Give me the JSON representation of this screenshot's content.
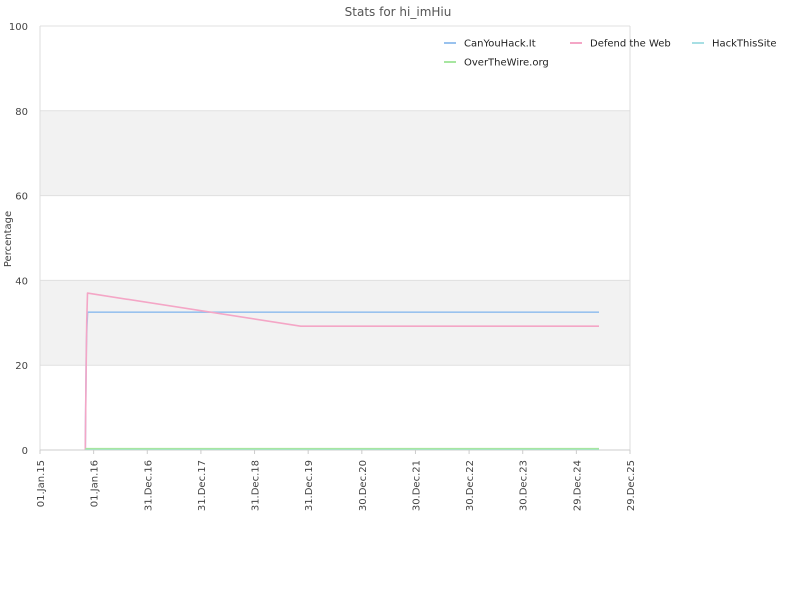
{
  "chart_data": {
    "type": "line",
    "title": "Stats for hi_imHiu",
    "xlabel": "",
    "ylabel": "Percentage",
    "ylim": [
      0,
      100
    ],
    "yticks": [
      0,
      20,
      40,
      60,
      80,
      100
    ],
    "xlim": [
      "2015-01-01",
      "2025-12-29"
    ],
    "xticks": [
      {
        "date": "2015-01-01",
        "label": "01.Jan.15"
      },
      {
        "date": "2016-01-01",
        "label": "01.Jan.16"
      },
      {
        "date": "2016-12-31",
        "label": "31.Dec.16"
      },
      {
        "date": "2017-12-31",
        "label": "31.Dec.17"
      },
      {
        "date": "2018-12-31",
        "label": "31.Dec.18"
      },
      {
        "date": "2019-12-31",
        "label": "31.Dec.19"
      },
      {
        "date": "2020-12-30",
        "label": "30.Dec.20"
      },
      {
        "date": "2021-12-30",
        "label": "30.Dec.21"
      },
      {
        "date": "2022-12-30",
        "label": "30.Dec.22"
      },
      {
        "date": "2023-12-30",
        "label": "30.Dec.23"
      },
      {
        "date": "2024-12-29",
        "label": "29.Dec.24"
      },
      {
        "date": "2025-12-29",
        "label": "29.Dec.25"
      }
    ],
    "grid": true,
    "legend_position": "top-right",
    "series": [
      {
        "name": "CanYouHack.It",
        "color": "#99c2ee",
        "points": [
          {
            "x": "2015-11-05",
            "y": 0
          },
          {
            "x": "2015-11-08",
            "y": 10
          },
          {
            "x": "2015-11-12",
            "y": 24
          },
          {
            "x": "2015-11-16",
            "y": 29
          },
          {
            "x": "2015-11-21",
            "y": 32.5
          },
          {
            "x": "2025-06-01",
            "y": 32.5
          }
        ]
      },
      {
        "name": "Defend the Web",
        "color": "#f4a6c6",
        "points": [
          {
            "x": "2015-11-05",
            "y": 0
          },
          {
            "x": "2015-11-09",
            "y": 12
          },
          {
            "x": "2015-11-15",
            "y": 30
          },
          {
            "x": "2015-11-20",
            "y": 37
          },
          {
            "x": "2019-11-10",
            "y": 29.2
          },
          {
            "x": "2025-06-01",
            "y": 29.2
          }
        ]
      },
      {
        "name": "HackThisSite",
        "color": "#a7dfe4",
        "points": [
          {
            "x": "2015-11-05",
            "y": 0.2
          },
          {
            "x": "2025-06-01",
            "y": 0.2
          }
        ]
      },
      {
        "name": "OverTheWire.org",
        "color": "#a7e6a0",
        "points": [
          {
            "x": "2015-11-05",
            "y": 0.3
          },
          {
            "x": "2025-06-01",
            "y": 0.3
          }
        ]
      }
    ]
  }
}
